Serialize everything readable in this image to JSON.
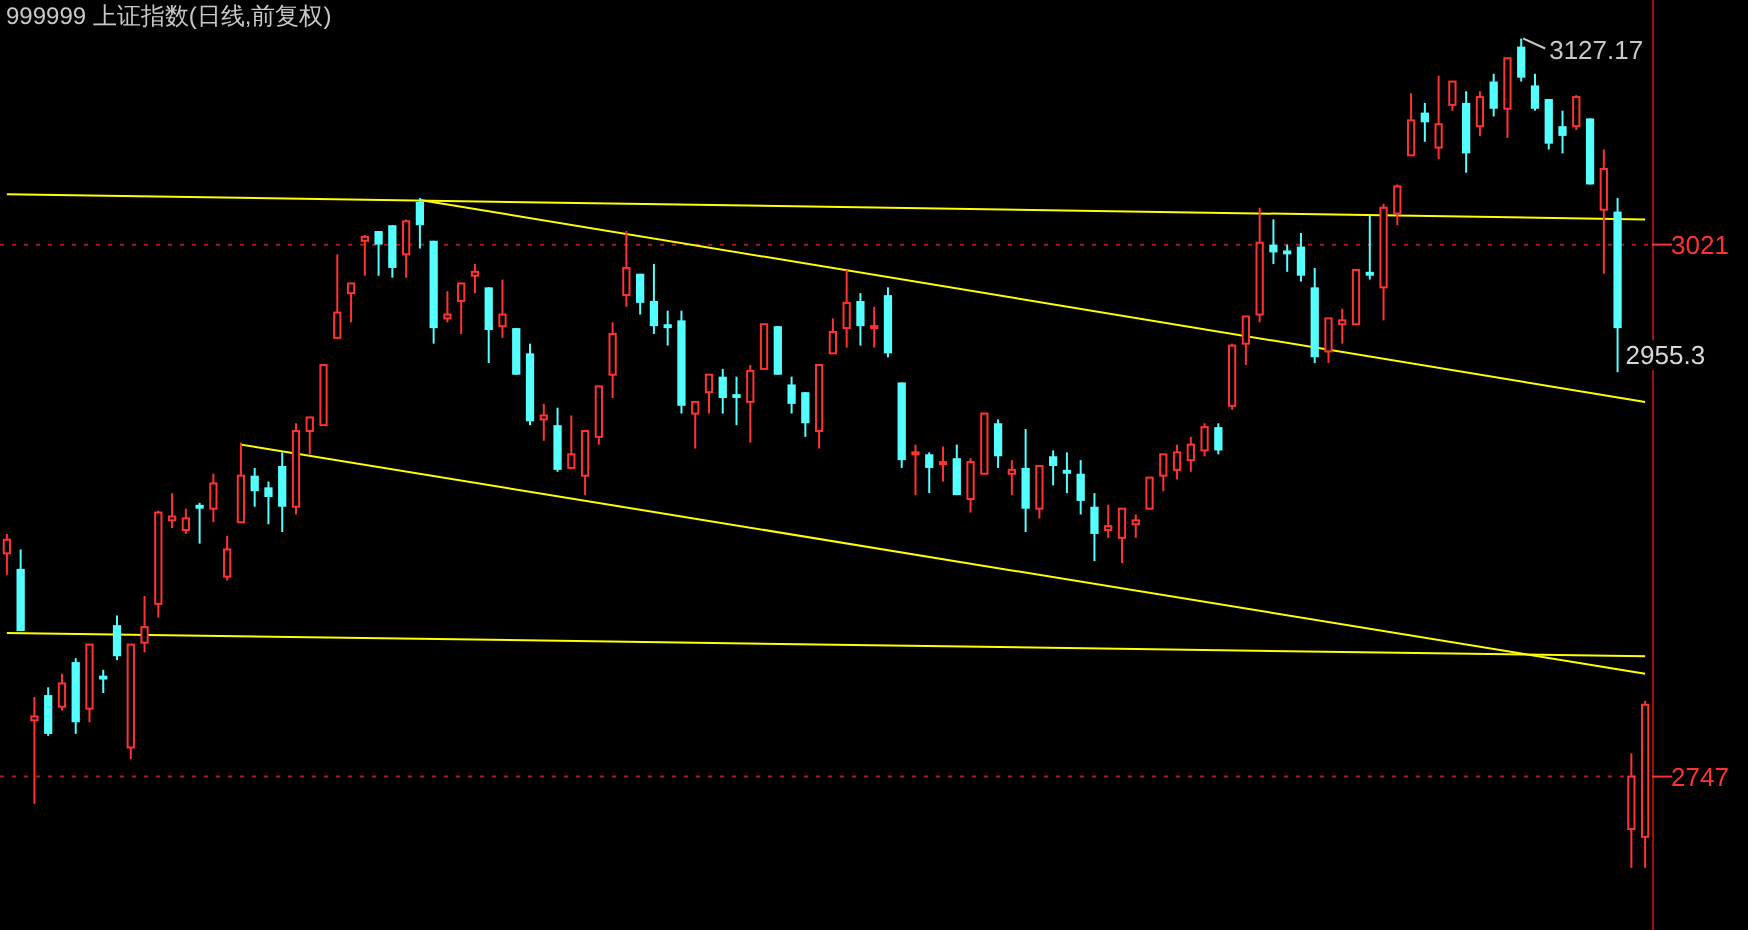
{
  "chart_data": {
    "type": "candlestick",
    "title": "999999 上证指数(日线,前复权)",
    "categories": [
      null,
      null,
      null,
      null,
      null,
      null,
      null,
      null,
      null,
      null,
      null,
      null,
      null,
      null,
      null,
      null,
      null,
      null,
      null,
      null,
      null,
      null,
      null,
      null,
      null,
      null,
      null,
      null,
      null,
      null,
      null,
      null,
      null,
      null,
      null,
      null,
      null,
      null,
      null,
      null,
      null,
      null,
      null,
      null,
      null,
      null,
      null,
      null,
      null,
      null,
      null,
      null,
      null,
      null,
      null,
      null,
      null,
      null,
      null,
      null,
      null,
      null,
      null,
      null,
      null,
      null,
      null,
      null,
      null,
      null,
      null,
      null,
      null,
      null,
      null,
      null,
      null,
      null,
      null,
      null,
      null,
      null,
      null,
      null,
      null,
      null,
      null,
      null,
      null,
      null,
      null,
      null,
      null,
      null,
      null,
      null,
      null,
      null,
      null,
      null,
      null,
      null,
      null,
      null,
      null,
      null,
      null,
      null,
      null,
      null,
      null,
      null,
      null,
      null,
      null,
      null,
      null,
      null,
      null,
      null
    ],
    "ohlc": [
      [
        2862,
        2872,
        2851,
        2869
      ],
      [
        2854,
        2864,
        2822,
        2822
      ],
      [
        2776,
        2788,
        2733,
        2778
      ],
      [
        2789,
        2793,
        2768,
        2769
      ],
      [
        2783,
        2800,
        2781,
        2795
      ],
      [
        2806,
        2808,
        2769,
        2775
      ],
      [
        2782,
        2815,
        2775,
        2815
      ],
      [
        2799,
        2802,
        2790,
        2797
      ],
      [
        2825,
        2830,
        2807,
        2809
      ],
      [
        2762,
        2815,
        2756,
        2815
      ],
      [
        2816,
        2840,
        2811,
        2824
      ],
      [
        2836,
        2884,
        2829,
        2883
      ],
      [
        2879,
        2893,
        2875,
        2881
      ],
      [
        2874,
        2885,
        2872,
        2880
      ],
      [
        2887,
        2888,
        2867,
        2885
      ],
      [
        2885,
        2903,
        2878,
        2898
      ],
      [
        2850,
        2871,
        2848,
        2864
      ],
      [
        2878,
        2919,
        2878,
        2902
      ],
      [
        2902,
        2906,
        2886,
        2894
      ],
      [
        2896,
        2899,
        2877,
        2891
      ],
      [
        2907,
        2914,
        2873,
        2886
      ],
      [
        2886,
        2929,
        2882,
        2925
      ],
      [
        2925,
        2932,
        2913,
        2932
      ],
      [
        2928,
        2959,
        2928,
        2959
      ],
      [
        2973,
        3016,
        2973,
        2986
      ],
      [
        2996,
        3001,
        2981,
        3001
      ],
      [
        3023,
        3026,
        3005,
        3025
      ],
      [
        3028,
        3028,
        3005,
        3021
      ],
      [
        3031,
        3031,
        3004,
        3009
      ],
      [
        3016,
        3034,
        3004,
        3033
      ],
      [
        3043,
        3045,
        3019,
        3031
      ],
      [
        3023,
        3023,
        2970,
        2978
      ],
      [
        2983,
        2997,
        2981,
        2985
      ],
      [
        2992,
        3001,
        2975,
        3001
      ],
      [
        3005,
        3011,
        2996,
        3007
      ],
      [
        2999,
        2999,
        2960,
        2977
      ],
      [
        2979,
        3003,
        2973,
        2985
      ],
      [
        2978,
        2978,
        2954,
        2954
      ],
      [
        2965,
        2970,
        2928,
        2930
      ],
      [
        2931,
        2939,
        2920,
        2933
      ],
      [
        2928,
        2937,
        2904,
        2905
      ],
      [
        2906,
        2933,
        2906,
        2913
      ],
      [
        2902,
        2925,
        2892,
        2925
      ],
      [
        2922,
        2948,
        2918,
        2948
      ],
      [
        2954,
        2981,
        2942,
        2975
      ],
      [
        2995,
        3028,
        2989,
        3009
      ],
      [
        3006,
        3006,
        2985,
        2991
      ],
      [
        2992,
        3011,
        2975,
        2979
      ],
      [
        2980,
        2987,
        2969,
        2978
      ],
      [
        2982,
        2987,
        2934,
        2938
      ],
      [
        2934,
        2940,
        2916,
        2940
      ],
      [
        2945,
        2954,
        2934,
        2954
      ],
      [
        2953,
        2957,
        2934,
        2942
      ],
      [
        2944,
        2953,
        2928,
        2942
      ],
      [
        2940,
        2959,
        2919,
        2956
      ],
      [
        2957,
        2980,
        2957,
        2980
      ],
      [
        2979,
        2979,
        2954,
        2954
      ],
      [
        2949,
        2953,
        2934,
        2939
      ],
      [
        2945,
        2945,
        2922,
        2929
      ],
      [
        2925,
        2959,
        2916,
        2959
      ],
      [
        2965,
        2983,
        2965,
        2976
      ],
      [
        2978,
        3008,
        2968,
        2991
      ],
      [
        2992,
        2996,
        2969,
        2979
      ],
      [
        2978,
        2989,
        2968,
        2979
      ],
      [
        2995,
        2999,
        2963,
        2965
      ],
      [
        2950,
        2950,
        2906,
        2910
      ],
      [
        2913,
        2918,
        2892,
        2914
      ],
      [
        2913,
        2914,
        2893,
        2906
      ],
      [
        2908,
        2917,
        2899,
        2909
      ],
      [
        2911,
        2918,
        2892,
        2892
      ],
      [
        2890,
        2911,
        2883,
        2909
      ],
      [
        2903,
        2934,
        2903,
        2934
      ],
      [
        2929,
        2931,
        2906,
        2912
      ],
      [
        2903,
        2910,
        2892,
        2905
      ],
      [
        2906,
        2926,
        2873,
        2885
      ],
      [
        2885,
        2907,
        2880,
        2907
      ],
      [
        2912,
        2915,
        2897,
        2907
      ],
      [
        2905,
        2914,
        2893,
        2903
      ],
      [
        2903,
        2910,
        2882,
        2889
      ],
      [
        2886,
        2893,
        2858,
        2872
      ],
      [
        2874,
        2887,
        2870,
        2876
      ],
      [
        2870,
        2885,
        2857,
        2885
      ],
      [
        2877,
        2882,
        2870,
        2879
      ],
      [
        2885,
        2901,
        2885,
        2901
      ],
      [
        2902,
        2913,
        2894,
        2913
      ],
      [
        2905,
        2918,
        2900,
        2914
      ],
      [
        2910,
        2922,
        2904,
        2918
      ],
      [
        2915,
        2929,
        2912,
        2927
      ],
      [
        2927,
        2929,
        2913,
        2915
      ],
      [
        2938,
        2970,
        2936,
        2969
      ],
      [
        2970,
        2984,
        2959,
        2984
      ],
      [
        2985,
        3040,
        2981,
        3022
      ],
      [
        3021,
        3034,
        3011,
        3017
      ],
      [
        3018,
        3021,
        3007,
        3016
      ],
      [
        3020,
        3027,
        3002,
        3005
      ],
      [
        2999,
        3009,
        2960,
        2963
      ],
      [
        2966,
        2983,
        2960,
        2983
      ],
      [
        2980,
        2988,
        2970,
        2982
      ],
      [
        2980,
        3008,
        2980,
        3008
      ],
      [
        3007,
        3036,
        3003,
        3005
      ],
      [
        2999,
        3042,
        2982,
        3040
      ],
      [
        3037,
        3052,
        3031,
        3051
      ],
      [
        3067,
        3099,
        3067,
        3085
      ],
      [
        3089,
        3094,
        3074,
        3084
      ],
      [
        3071,
        3108,
        3065,
        3083
      ],
      [
        3093,
        3105,
        3090,
        3105
      ],
      [
        3094,
        3100,
        3058,
        3068
      ],
      [
        3082,
        3100,
        3077,
        3097
      ],
      [
        3105,
        3109,
        3087,
        3091
      ],
      [
        3091,
        3117,
        3076,
        3117
      ],
      [
        3123,
        3127.17,
        3105,
        3107
      ],
      [
        3103,
        3109,
        3090,
        3091
      ],
      [
        3096,
        3096,
        3070,
        3073
      ],
      [
        3082,
        3090,
        3068,
        3077
      ],
      [
        3082,
        3098,
        3080,
        3097
      ],
      [
        3086,
        3086,
        3052,
        3052
      ],
      [
        3039,
        3070,
        3006,
        3060
      ],
      [
        3038,
        3045,
        2955.3,
        2978
      ],
      [
        2720,
        2759,
        2700,
        2747
      ],
      [
        2716,
        2786,
        2700,
        2784
      ]
    ],
    "ylim": [
      2668,
      3147
    ],
    "yticks": [
      3021,
      2747
    ],
    "grid": "y",
    "series": [
      {
        "type": "line",
        "color": "#ffff00",
        "values": [
          3047,
          null,
          null,
          null,
          null,
          null,
          null,
          null,
          null,
          null,
          null,
          null,
          null,
          null,
          null,
          null,
          null,
          null,
          null,
          null,
          null,
          null,
          null,
          null,
          null,
          null,
          null,
          null,
          null,
          null,
          null,
          null,
          null,
          null,
          null,
          null,
          null,
          null,
          null,
          null,
          null,
          null,
          null,
          null,
          null,
          null,
          null,
          null,
          null,
          null,
          null,
          null,
          null,
          null,
          null,
          null,
          null,
          null,
          null,
          null,
          null,
          null,
          null,
          null,
          null,
          null,
          null,
          null,
          null,
          null,
          null,
          null,
          null,
          null,
          null,
          null,
          null,
          null,
          null,
          null,
          null,
          null,
          null,
          null,
          null,
          null,
          null,
          null,
          null,
          null,
          null,
          null,
          null,
          null,
          null,
          null,
          null,
          null,
          null,
          null,
          null,
          null,
          null,
          null,
          null,
          null,
          null,
          null,
          null,
          null,
          null,
          null,
          null,
          null,
          null,
          null,
          null,
          null,
          null,
          3034
        ]
      },
      {
        "type": "line",
        "color": "#ffff00",
        "values": [
          null,
          null,
          null,
          null,
          null,
          null,
          null,
          null,
          null,
          null,
          null,
          null,
          null,
          null,
          null,
          null,
          null,
          null,
          null,
          null,
          null,
          null,
          null,
          null,
          null,
          null,
          null,
          null,
          null,
          null,
          3044,
          null,
          null,
          null,
          null,
          null,
          null,
          null,
          null,
          null,
          null,
          null,
          null,
          null,
          null,
          null,
          null,
          null,
          null,
          null,
          null,
          null,
          null,
          null,
          null,
          null,
          null,
          null,
          null,
          null,
          null,
          null,
          null,
          null,
          null,
          null,
          null,
          null,
          null,
          null,
          null,
          null,
          null,
          null,
          null,
          null,
          null,
          null,
          null,
          null,
          null,
          null,
          null,
          null,
          null,
          null,
          null,
          null,
          null,
          null,
          null,
          null,
          null,
          null,
          null,
          null,
          null,
          null,
          null,
          null,
          null,
          null,
          null,
          null,
          null,
          null,
          null,
          null,
          null,
          null,
          null,
          null,
          null,
          null,
          null,
          null,
          null,
          null,
          null,
          2940
        ]
      },
      {
        "type": "line",
        "color": "#ffff00",
        "values": [
          null,
          null,
          null,
          null,
          null,
          null,
          null,
          null,
          null,
          null,
          null,
          null,
          null,
          null,
          null,
          null,
          null,
          2918,
          null,
          null,
          null,
          null,
          null,
          null,
          null,
          null,
          null,
          null,
          null,
          null,
          null,
          null,
          null,
          null,
          null,
          null,
          null,
          null,
          null,
          null,
          null,
          null,
          null,
          null,
          null,
          null,
          null,
          null,
          null,
          null,
          null,
          null,
          null,
          null,
          null,
          null,
          null,
          null,
          null,
          null,
          null,
          null,
          null,
          null,
          null,
          null,
          null,
          null,
          null,
          null,
          null,
          null,
          null,
          null,
          null,
          null,
          null,
          null,
          null,
          null,
          null,
          null,
          null,
          null,
          null,
          null,
          null,
          null,
          null,
          null,
          null,
          null,
          null,
          null,
          null,
          null,
          null,
          null,
          null,
          null,
          null,
          null,
          null,
          null,
          null,
          null,
          null,
          null,
          null,
          null,
          null,
          null,
          null,
          null,
          null,
          null,
          null,
          null,
          null,
          2800
        ]
      },
      {
        "type": "line",
        "color": "#ffff00",
        "values": [
          2821,
          null,
          null,
          null,
          null,
          null,
          null,
          null,
          null,
          null,
          null,
          null,
          null,
          null,
          null,
          null,
          null,
          null,
          null,
          null,
          null,
          null,
          null,
          null,
          null,
          null,
          null,
          null,
          null,
          null,
          null,
          null,
          null,
          null,
          null,
          null,
          null,
          null,
          null,
          null,
          null,
          null,
          null,
          null,
          null,
          null,
          null,
          null,
          null,
          null,
          null,
          null,
          null,
          null,
          null,
          null,
          null,
          null,
          null,
          null,
          null,
          null,
          null,
          null,
          null,
          null,
          null,
          null,
          null,
          null,
          null,
          null,
          null,
          null,
          null,
          null,
          null,
          null,
          null,
          null,
          null,
          null,
          null,
          null,
          null,
          null,
          null,
          null,
          null,
          null,
          null,
          null,
          null,
          null,
          null,
          null,
          null,
          null,
          null,
          null,
          null,
          null,
          null,
          null,
          null,
          null,
          null,
          null,
          null,
          null,
          null,
          null,
          null,
          null,
          null,
          null,
          null,
          null,
          null,
          2809
        ]
      }
    ],
    "annotations": [
      "3127.17",
      "2955.3"
    ]
  }
}
